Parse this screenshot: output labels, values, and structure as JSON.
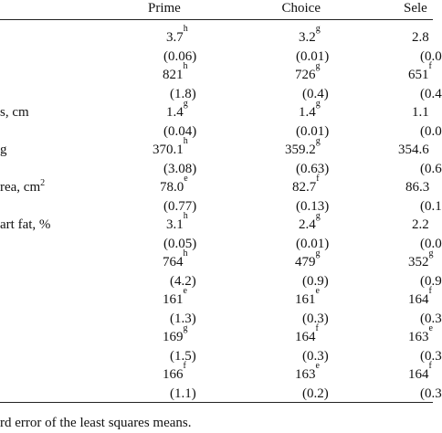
{
  "table": {
    "header": [
      "Prime",
      "Choice",
      "Sele"
    ],
    "rows": [
      {
        "cells": [
          {
            "text": "3.7",
            "sup": "h"
          },
          {
            "text": "3.2",
            "sup": "g"
          },
          {
            "text": "2.8"
          }
        ]
      },
      {
        "cells": [
          {
            "text": "(0.06)"
          },
          {
            "text": "(0.01)"
          },
          {
            "text": "(0.0"
          }
        ]
      },
      {
        "cells": [
          {
            "text": "821",
            "sup": "h"
          },
          {
            "text": "726",
            "sup": "g"
          },
          {
            "text": "651",
            "sup": "f"
          }
        ]
      },
      {
        "cells": [
          {
            "text": "(1.8)"
          },
          {
            "text": "(0.4)"
          },
          {
            "text": "(0.4"
          }
        ]
      },
      {
        "label": {
          "text": "s, cm"
        },
        "cells": [
          {
            "text": "1.4",
            "sup": "g"
          },
          {
            "text": "1.4",
            "sup": "g"
          },
          {
            "text": "1.1"
          }
        ]
      },
      {
        "cells": [
          {
            "text": "(0.04)"
          },
          {
            "text": "(0.01)"
          },
          {
            "text": "(0.0"
          }
        ]
      },
      {
        "label": {
          "text": "g"
        },
        "cells": [
          {
            "text": "370.1",
            "sup": "h"
          },
          {
            "text": "359.2",
            "sup": "g"
          },
          {
            "text": "354.6"
          }
        ]
      },
      {
        "cells": [
          {
            "text": "(3.08)"
          },
          {
            "text": "(0.63)"
          },
          {
            "text": "(0.6"
          }
        ]
      },
      {
        "label": {
          "text": "rea, cm",
          "sup": "2"
        },
        "cells": [
          {
            "text": "78.0",
            "sup": "e"
          },
          {
            "text": "82.7",
            "sup": "f"
          },
          {
            "text": "86.3"
          }
        ]
      },
      {
        "cells": [
          {
            "text": "(0.77)"
          },
          {
            "text": "(0.13)"
          },
          {
            "text": "(0.1"
          }
        ]
      },
      {
        "label": {
          "text": "art fat, %"
        },
        "cells": [
          {
            "text": "3.1",
            "sup": "h"
          },
          {
            "text": "2.4",
            "sup": "g"
          },
          {
            "text": "2.2"
          }
        ]
      },
      {
        "cells": [
          {
            "text": "(0.05)"
          },
          {
            "text": "(0.01)"
          },
          {
            "text": "(0.0"
          }
        ]
      },
      {
        "cells": [
          {
            "text": "764",
            "sup": "h"
          },
          {
            "text": "479",
            "sup": "g"
          },
          {
            "text": "352",
            "sup": "g"
          }
        ]
      },
      {
        "cells": [
          {
            "text": "(4.2)"
          },
          {
            "text": "(0.9)"
          },
          {
            "text": "(0.9"
          }
        ]
      },
      {
        "cells": [
          {
            "text": "161",
            "sup": "e"
          },
          {
            "text": "161",
            "sup": "e"
          },
          {
            "text": "164",
            "sup": "f"
          }
        ]
      },
      {
        "cells": [
          {
            "text": "(1.3)"
          },
          {
            "text": "(0.3)"
          },
          {
            "text": "(0.3"
          }
        ]
      },
      {
        "cells": [
          {
            "text": "169",
            "sup": "g"
          },
          {
            "text": "164",
            "sup": "f"
          },
          {
            "text": "163",
            "sup": "e"
          }
        ]
      },
      {
        "cells": [
          {
            "text": "(1.5)"
          },
          {
            "text": "(0.3)"
          },
          {
            "text": "(0.3"
          }
        ]
      },
      {
        "cells": [
          {
            "text": "166",
            "sup": "f"
          },
          {
            "text": "163",
            "sup": "e"
          },
          {
            "text": "164",
            "sup": "f"
          }
        ]
      },
      {
        "cells": [
          {
            "text": "(1.1)"
          },
          {
            "text": "(0.2)"
          },
          {
            "text": "(0.3"
          }
        ]
      }
    ],
    "footnote": "rd error of the least squares means."
  }
}
